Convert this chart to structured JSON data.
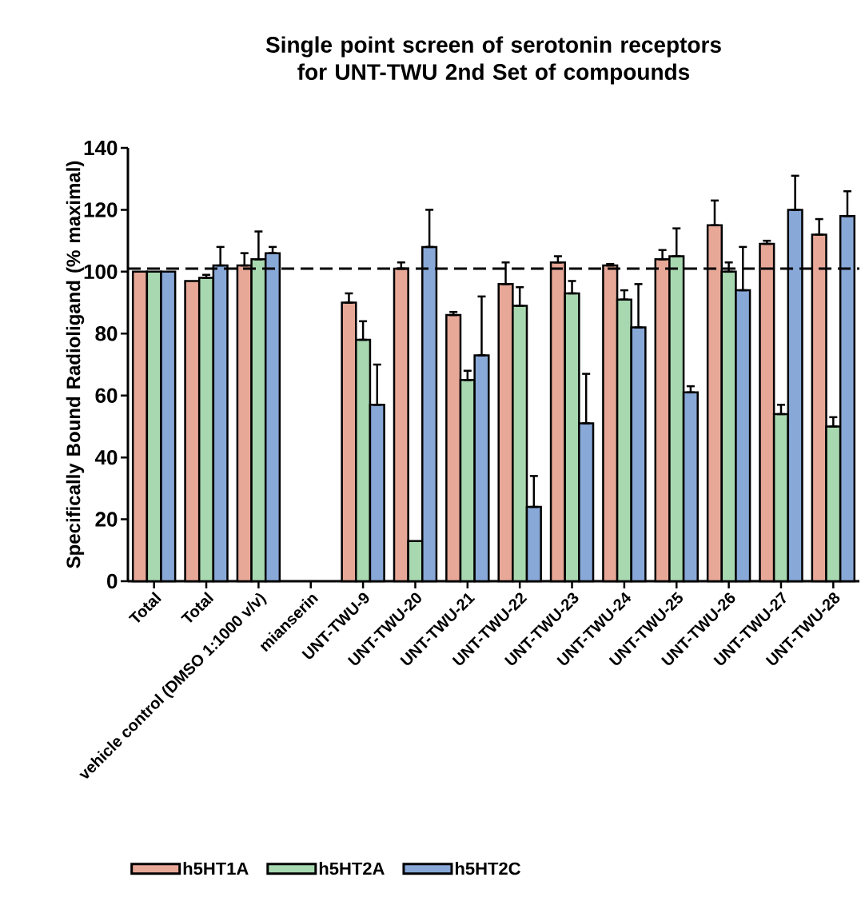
{
  "chart_data": {
    "type": "bar",
    "title": "Single point screen of serotonin receptors for UNT-TWU 2nd Set of compounds",
    "ylabel": "Specifically Bound Radioligand (% maximal)",
    "categories": [
      "Total",
      "Total",
      "vehicle control (DMSO 1:1000 v/v)",
      "mianserin",
      "UNT-TWU-9",
      "UNT-TWU-20",
      "UNT-TWU-21",
      "UNT-TWU-22",
      "UNT-TWU-23",
      "UNT-TWU-24",
      "UNT-TWU-25",
      "UNT-TWU-26",
      "UNT-TWU-27",
      "UNT-TWU-28"
    ],
    "series": [
      {
        "name": "h5HT1A",
        "color": "#e8a898",
        "values": [
          100,
          97,
          102,
          null,
          90,
          101,
          86,
          96,
          103,
          102,
          104,
          115,
          109,
          112
        ],
        "errors": [
          null,
          null,
          [
            102,
            106
          ],
          null,
          [
            90,
            93
          ],
          [
            101,
            103
          ],
          [
            86,
            87
          ],
          [
            96,
            103
          ],
          [
            103,
            105
          ],
          [
            102,
            102.5
          ],
          [
            104,
            107
          ],
          [
            115,
            123
          ],
          [
            109,
            110
          ],
          [
            112,
            117
          ]
        ]
      },
      {
        "name": "h5HT2A",
        "color": "#a8d8b0",
        "values": [
          100,
          98,
          104,
          null,
          78,
          13,
          65,
          89,
          93,
          91,
          105,
          100,
          54,
          50
        ],
        "errors": [
          null,
          [
            98,
            99
          ],
          [
            104,
            113
          ],
          null,
          [
            78,
            84
          ],
          null,
          [
            65,
            68
          ],
          [
            89,
            95
          ],
          [
            93,
            97
          ],
          [
            91,
            94
          ],
          [
            105,
            114
          ],
          [
            100,
            103
          ],
          [
            54,
            57
          ],
          [
            50,
            53
          ]
        ]
      },
      {
        "name": "h5HT2C",
        "color": "#88a8d8",
        "values": [
          100,
          102,
          106,
          null,
          57,
          108,
          73,
          24,
          51,
          82,
          61,
          94,
          120,
          118
        ],
        "errors": [
          null,
          [
            102,
            108
          ],
          [
            106,
            108
          ],
          null,
          [
            57,
            70
          ],
          [
            108,
            120
          ],
          [
            73,
            92
          ],
          [
            24,
            34
          ],
          [
            51,
            67
          ],
          [
            82,
            96
          ],
          [
            61,
            63
          ],
          [
            94,
            108
          ],
          [
            120,
            131
          ],
          [
            118,
            126
          ]
        ]
      }
    ],
    "ylim": [
      0,
      140
    ],
    "yticks": [
      0,
      20,
      40,
      60,
      80,
      100,
      120,
      140
    ],
    "ref_lines": [
      {
        "axis": "y",
        "value": 101,
        "line_style": "dashed"
      }
    ],
    "grid": false,
    "legend": "bottom"
  }
}
